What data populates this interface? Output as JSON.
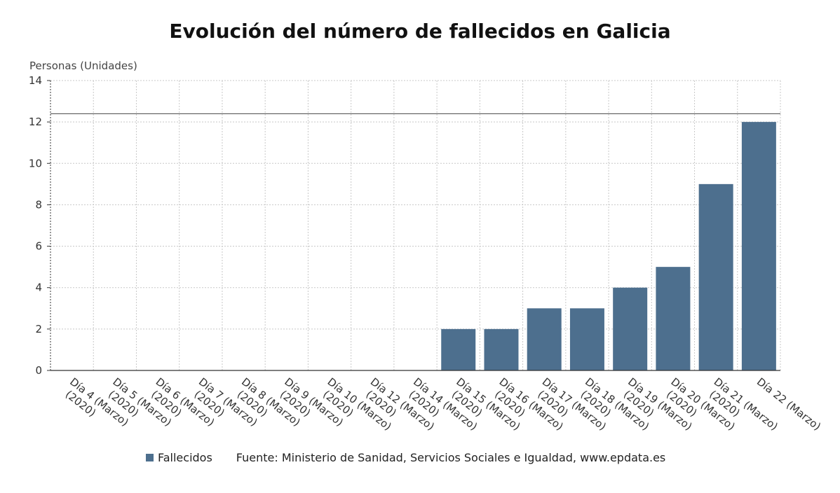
{
  "chart_data": {
    "type": "bar",
    "title": "Evolución del número de fallecidos en Galicia",
    "ylabel": "Personas (Unidades)",
    "xlabel": "",
    "ylim": [
      0,
      14
    ],
    "yticks": [
      0,
      2,
      4,
      6,
      8,
      10,
      12,
      14
    ],
    "grid": true,
    "legend_position": "bottom",
    "reference_line_value": 12.4,
    "categories": [
      [
        "Día 4 (Marzo)",
        "(2020)"
      ],
      [
        "Día 5 (Marzo)",
        "(2020)"
      ],
      [
        "Día 6 (Marzo)",
        "(2020)"
      ],
      [
        "Día 7 (Marzo)",
        "(2020)"
      ],
      [
        "Día 8 (Marzo)",
        "(2020)"
      ],
      [
        "Día 9 (Marzo)",
        "(2020)"
      ],
      [
        "Día 10 (Marzo)",
        "(2020)"
      ],
      [
        "Día 12 (Marzo)",
        "(2020)"
      ],
      [
        "Día 14 (Marzo)",
        "(2020)"
      ],
      [
        "Día 15 (Marzo)",
        "(2020)"
      ],
      [
        "Día 16 (Marzo)",
        "(2020)"
      ],
      [
        "Día 17 (Marzo)",
        "(2020)"
      ],
      [
        "Día 18 (Marzo)",
        "(2020)"
      ],
      [
        "Día 19 (Marzo)",
        "(2020)"
      ],
      [
        "Día 20 (Marzo)",
        "(2020)"
      ],
      [
        "Día 21 (Marzo)",
        "(2020)"
      ],
      [
        "Día 22 (Marzo)"
      ]
    ],
    "series": [
      {
        "name": "Fallecidos",
        "color": "#4d6f8e",
        "values": [
          0,
          0,
          0,
          0,
          0,
          0,
          0,
          0,
          0,
          2,
          2,
          3,
          3,
          4,
          5,
          9,
          12
        ]
      }
    ]
  },
  "legend": {
    "series_label": "Fallecidos",
    "source": "Fuente: Ministerio de Sanidad, Servicios Sociales e Igualdad, www.epdata.es"
  }
}
